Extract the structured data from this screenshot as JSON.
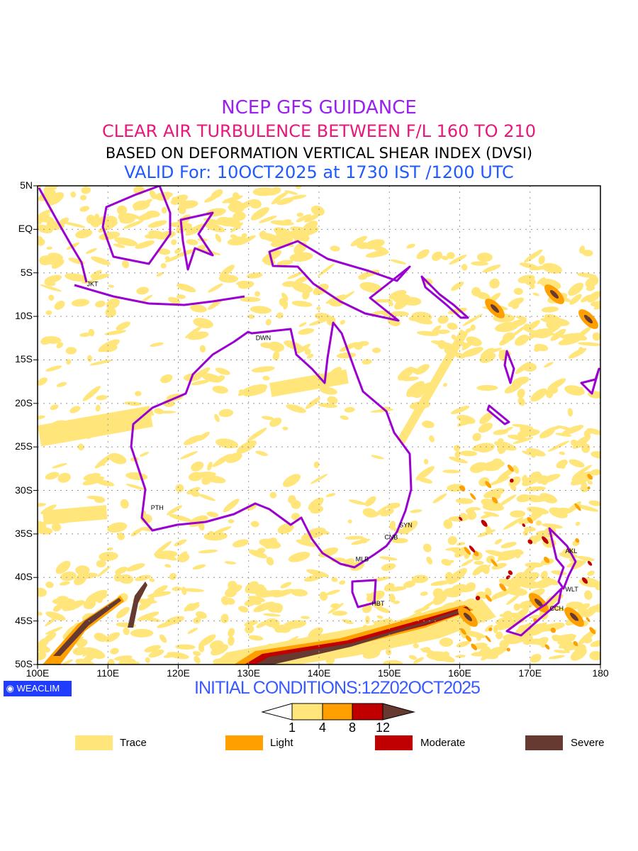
{
  "titles": {
    "line1": "NCEP GFS GUIDANCE",
    "line2": "CLEAR AIR TURBULENCE BETWEEN F/L 160 TO 210",
    "line3": "BASED ON DEFORMATION VERTICAL SHEAR INDEX (DVSI)",
    "line4": "VALID For: 10OCT2025 at 1730 IST /1200 UTC"
  },
  "axes": {
    "lat_labels": [
      "5N",
      "EQ",
      "5S",
      "10S",
      "15S",
      "20S",
      "25S",
      "30S",
      "35S",
      "40S",
      "45S",
      "50S"
    ],
    "lon_labels": [
      "100E",
      "110E",
      "120E",
      "130E",
      "140E",
      "150E",
      "160E",
      "170E",
      "180"
    ]
  },
  "cities": [
    {
      "code": "JKT"
    },
    {
      "code": "DWN"
    },
    {
      "code": "PTH"
    },
    {
      "code": "SYN"
    },
    {
      "code": "CNB"
    },
    {
      "code": "MLB"
    },
    {
      "code": "HBT"
    },
    {
      "code": "AKL"
    },
    {
      "code": "WLT"
    },
    {
      "code": "CCH"
    }
  ],
  "footer": {
    "logo": "WEACLIM",
    "initial_conditions": "INITIAL CONDITIONS:12Z02OCT2025"
  },
  "colorbar": {
    "ticks": [
      "1",
      "4",
      "8",
      "12"
    ],
    "colors": [
      "#ffe57a",
      "#ffa000",
      "#c00000",
      "#663a30"
    ]
  },
  "legend": [
    {
      "label": "Trace",
      "color": "#ffe57a"
    },
    {
      "label": "Light",
      "color": "#ffa000"
    },
    {
      "label": "Moderate",
      "color": "#c00000"
    },
    {
      "label": "Severe",
      "color": "#663a30"
    }
  ]
}
